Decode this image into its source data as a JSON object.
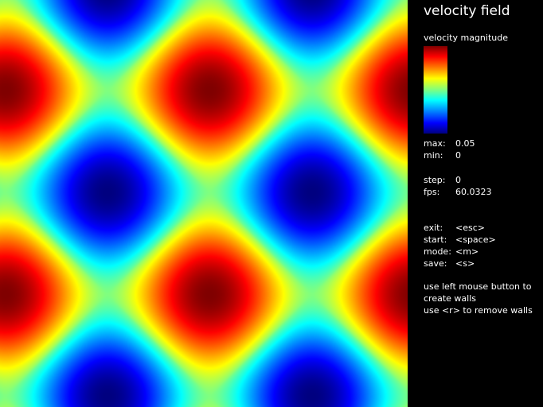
{
  "panel": {
    "title": "velocity field",
    "colorbar_label": "velocity magnitude",
    "max_label": "max:",
    "max_value": "0.05",
    "min_label": "min:",
    "min_value": "0",
    "step_label": "step:",
    "step_value": "0",
    "fps_label": "fps:",
    "fps_value": "60.0323",
    "exit_label": "exit:",
    "exit_key": "<esc>",
    "start_label": "start:",
    "start_key": "<space>",
    "mode_label": "mode:",
    "mode_key": "<m>",
    "save_label": "save:",
    "save_key": "<s>",
    "help_line1": "use left mouse button to",
    "help_line2": "create walls",
    "help_line3": "use <r> to remove walls"
  },
  "colormap": "jet",
  "background_color": "#000000"
}
